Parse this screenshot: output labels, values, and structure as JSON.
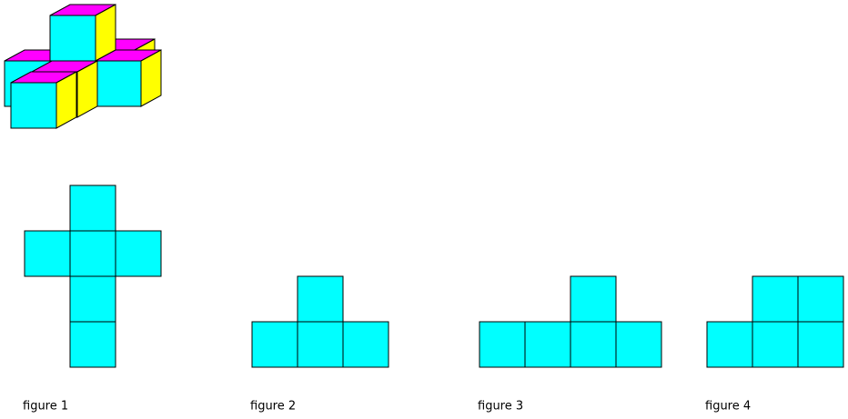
{
  "figures": [
    {
      "label": "figure 1"
    },
    {
      "label": "figure 2"
    },
    {
      "label": "figure 3"
    },
    {
      "label": "figure 4"
    }
  ]
}
